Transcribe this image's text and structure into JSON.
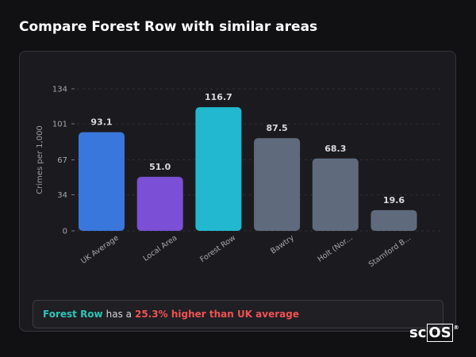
{
  "title": "Compare Forest Row with similar areas",
  "chart_data": {
    "type": "bar",
    "ylabel": "Crimes per 1,000",
    "ylim": [
      0,
      134
    ],
    "yticks": [
      0,
      34,
      67,
      101,
      134
    ],
    "grid": true,
    "categories": [
      "UK Average",
      "Local Area",
      "Forest Row",
      "Bawtry",
      "Holt (Nor...",
      "Stamford B..."
    ],
    "values": [
      93.1,
      51.0,
      116.7,
      87.5,
      68.3,
      19.6
    ],
    "value_labels": [
      "93.1",
      "51.0",
      "116.7",
      "87.5",
      "68.3",
      "19.6"
    ],
    "colors": [
      "#3a77dc",
      "#7b4fd6",
      "#22b8cf",
      "#5f6b7d",
      "#5f6b7d",
      "#5f6b7d"
    ]
  },
  "summary": {
    "area": "Forest Row",
    "text": "has a",
    "delta": "25.3% higher than UK average"
  },
  "logo": {
    "prefix": "sc",
    "suffix": "OS",
    "mark": "®"
  }
}
